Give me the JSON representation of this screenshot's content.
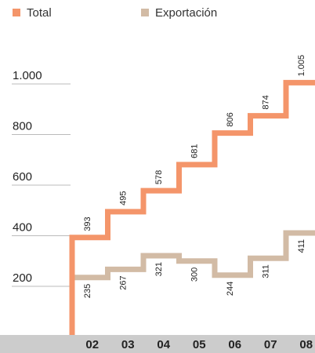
{
  "chart_data": {
    "type": "line",
    "step": true,
    "categories": [
      "02",
      "03",
      "04",
      "05",
      "06",
      "07",
      "08"
    ],
    "series": [
      {
        "name": "Total",
        "color": "#f4956a",
        "values": [
          393,
          495,
          578,
          681,
          806,
          874,
          1005
        ],
        "labels": [
          "393",
          "495",
          "578",
          "681",
          "806",
          "874",
          "1.005"
        ]
      },
      {
        "name": "Exportación",
        "color": "#d2bba5",
        "values": [
          235,
          267,
          321,
          300,
          244,
          311,
          411
        ],
        "labels": [
          "235",
          "267",
          "321",
          "300",
          "244",
          "311",
          "411"
        ]
      }
    ],
    "yticks": [
      200,
      400,
      600,
      800,
      1000
    ],
    "ytick_labels": [
      "200",
      "400",
      "600",
      "800",
      "1.000"
    ],
    "ylim": [
      0,
      1000
    ],
    "grid": true,
    "legend": "top-left",
    "axis_band_color": "#cccccc",
    "gridline_color": "#bbbbbb"
  }
}
